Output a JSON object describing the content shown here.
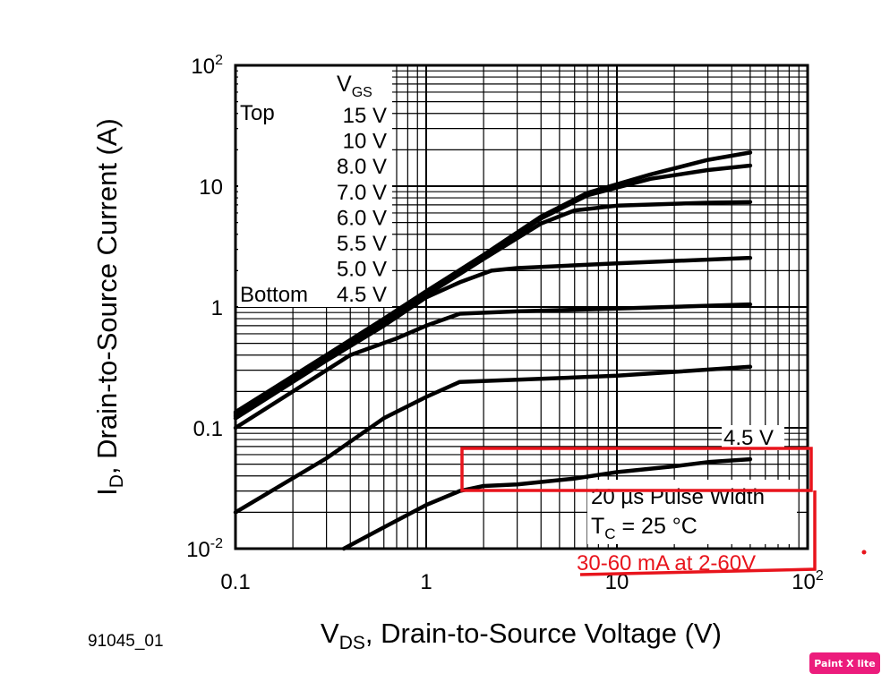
{
  "chart_data": {
    "type": "line",
    "x_scale": "log",
    "y_scale": "log",
    "xlim": [
      0.1,
      100
    ],
    "ylim": [
      0.01,
      100
    ],
    "grid": true,
    "xlabel": "V_DS, Drain-to-Source Voltage (V)",
    "ylabel": "I_D, Drain-to-Source Current (A)",
    "x_ticks": [
      {
        "value": 0.1,
        "label": "0.1"
      },
      {
        "value": 1,
        "label": "1"
      },
      {
        "value": 10,
        "label": "10"
      },
      {
        "value": 100,
        "label": "10",
        "sup": "2"
      }
    ],
    "y_ticks": [
      {
        "value": 0.01,
        "label": "10",
        "sup": "-2"
      },
      {
        "value": 0.1,
        "label": "0.1"
      },
      {
        "value": 1,
        "label": "1"
      },
      {
        "value": 10,
        "label": "10"
      },
      {
        "value": 100,
        "label": "10",
        "sup": "2"
      }
    ],
    "legend": {
      "title": "VGS",
      "title_main": "V",
      "title_sub": "GS",
      "top_label": "Top",
      "bottom_label": "Bottom",
      "entries": [
        "15 V",
        "10 V",
        "8.0 V",
        "7.0 V",
        "6.0 V",
        "5.5 V",
        "5.0 V",
        "4.5 V"
      ]
    },
    "annotations": {
      "curve_label": "4.5 V",
      "pulse_width": "20 µs Pulse Width",
      "tc_main": "T",
      "tc_sub": "C",
      "tc_rest": " = 25 °C",
      "red_note": "30-60 mA at 2-60V"
    },
    "series": [
      {
        "points": [
          [
            0.1,
            0.135
          ],
          [
            0.3,
            0.4
          ],
          [
            0.6,
            0.8
          ],
          [
            1,
            1.35
          ],
          [
            2,
            2.7
          ],
          [
            4,
            5.6
          ],
          [
            7,
            8.8
          ],
          [
            15,
            12.5
          ],
          [
            30,
            16.5
          ],
          [
            50,
            19
          ]
        ]
      },
      {
        "points": [
          [
            0.1,
            0.13
          ],
          [
            0.3,
            0.38
          ],
          [
            0.6,
            0.75
          ],
          [
            1,
            1.3
          ],
          [
            2,
            2.6
          ],
          [
            4,
            5.4
          ],
          [
            7,
            8.4
          ],
          [
            15,
            11.5
          ],
          [
            30,
            13.6
          ],
          [
            50,
            14.8
          ]
        ]
      },
      {
        "points": [
          [
            0.1,
            0.125
          ],
          [
            0.3,
            0.37
          ],
          [
            0.6,
            0.73
          ],
          [
            1,
            1.25
          ],
          [
            2,
            2.5
          ],
          [
            4,
            4.9
          ],
          [
            6,
            6.3
          ],
          [
            10,
            6.9
          ],
          [
            30,
            7.3
          ],
          [
            50,
            7.4
          ]
        ]
      },
      {
        "points": [
          [
            0.1,
            0.12
          ],
          [
            0.3,
            0.36
          ],
          [
            0.6,
            0.7
          ],
          [
            1,
            1.2
          ],
          [
            1.5,
            1.6
          ],
          [
            2.2,
            2.0
          ],
          [
            3,
            2.1
          ],
          [
            10,
            2.3
          ],
          [
            50,
            2.55
          ]
        ]
      },
      {
        "points": [
          [
            0.1,
            0.1
          ],
          [
            0.2,
            0.2
          ],
          [
            0.4,
            0.4
          ],
          [
            0.7,
            0.55
          ],
          [
            1,
            0.7
          ],
          [
            1.5,
            0.88
          ],
          [
            3,
            0.92
          ],
          [
            10,
            0.97
          ],
          [
            50,
            1.05
          ]
        ]
      },
      {
        "points": [
          [
            0.1,
            0.02
          ],
          [
            0.3,
            0.056
          ],
          [
            0.6,
            0.12
          ],
          [
            1,
            0.18
          ],
          [
            1.5,
            0.24
          ],
          [
            3,
            0.25
          ],
          [
            10,
            0.27
          ],
          [
            50,
            0.32
          ]
        ]
      },
      {
        "points": [
          [
            0.37,
            0.01
          ],
          [
            0.6,
            0.015
          ],
          [
            1,
            0.023
          ],
          [
            1.5,
            0.03
          ],
          [
            2,
            0.033
          ],
          [
            3,
            0.034
          ],
          [
            6,
            0.038
          ],
          [
            10,
            0.043
          ],
          [
            20,
            0.048
          ],
          [
            30,
            0.052
          ],
          [
            50,
            0.055
          ]
        ]
      }
    ],
    "figure_id": "91045_01",
    "watermark": "Paint X lite"
  }
}
